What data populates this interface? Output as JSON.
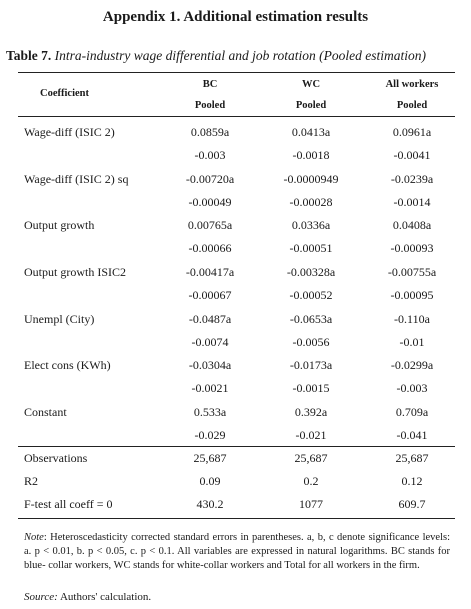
{
  "appendix_title": "Appendix 1. Additional estimation results",
  "table": {
    "label": "Table 7.",
    "title": "Intra-industry wage differential and job rotation (Pooled estimation)",
    "header": {
      "coefficient": "Coefficient",
      "columns": [
        {
          "name": "BC",
          "sub": "Pooled"
        },
        {
          "name": "WC",
          "sub": "Pooled"
        },
        {
          "name": "All workers",
          "sub": "Pooled"
        }
      ]
    },
    "rows": [
      {
        "label": "Wage-diff (ISIC 2)",
        "values": [
          "0.0859a",
          "0.0413a",
          "0.0961a"
        ],
        "se": [
          "-0.003",
          "-0.0018",
          "-0.0041"
        ]
      },
      {
        "label": "Wage-diff (ISIC 2) sq",
        "values": [
          "-0.00720a",
          "-0.0000949",
          "-0.0239a"
        ],
        "se": [
          "-0.00049",
          "-0.00028",
          "-0.0014"
        ]
      },
      {
        "label": "Output growth",
        "values": [
          "0.00765a",
          "0.0336a",
          "0.0408a"
        ],
        "se": [
          "-0.00066",
          "-0.00051",
          "-0.00093"
        ]
      },
      {
        "label": "Output growth ISIC2",
        "values": [
          "-0.00417a",
          "-0.00328a",
          "-0.00755a"
        ],
        "se": [
          "-0.00067",
          "-0.00052",
          "-0.00095"
        ]
      },
      {
        "label": "Unempl (City)",
        "values": [
          "-0.0487a",
          "-0.0653a",
          "-0.110a"
        ],
        "se": [
          "-0.0074",
          "-0.0056",
          "-0.01"
        ]
      },
      {
        "label": "Elect cons (KWh)",
        "values": [
          "-0.0304a",
          "-0.0173a",
          "-0.0299a"
        ],
        "se": [
          "-0.0021",
          "-0.0015",
          "-0.003"
        ]
      },
      {
        "label": "Constant",
        "values": [
          "0.533a",
          "0.392a",
          "0.709a"
        ],
        "se": [
          "-0.029",
          "-0.021",
          "-0.041"
        ]
      }
    ],
    "stats": [
      {
        "label": "Observations",
        "values": [
          "25,687",
          "25,687",
          "25,687"
        ]
      },
      {
        "label": "R2",
        "values": [
          "0.09",
          "0.2",
          "0.12"
        ]
      },
      {
        "label": "F-test all coeff = 0",
        "values": [
          "430.2",
          "1077",
          "609.7"
        ]
      }
    ]
  },
  "note": {
    "label": "Note",
    "text": ": Heteroscedasticity corrected standard errors in parentheses. a, b, c denote significance levels: a. p < 0.01, b. p < 0.05, c. p < 0.1. All variables are expressed in natural logarithms. BC stands for blue- collar workers, WC stands for white-collar workers and Total for all workers in the firm."
  },
  "source": {
    "label": "Source:",
    "text": " Authors' calculation."
  }
}
